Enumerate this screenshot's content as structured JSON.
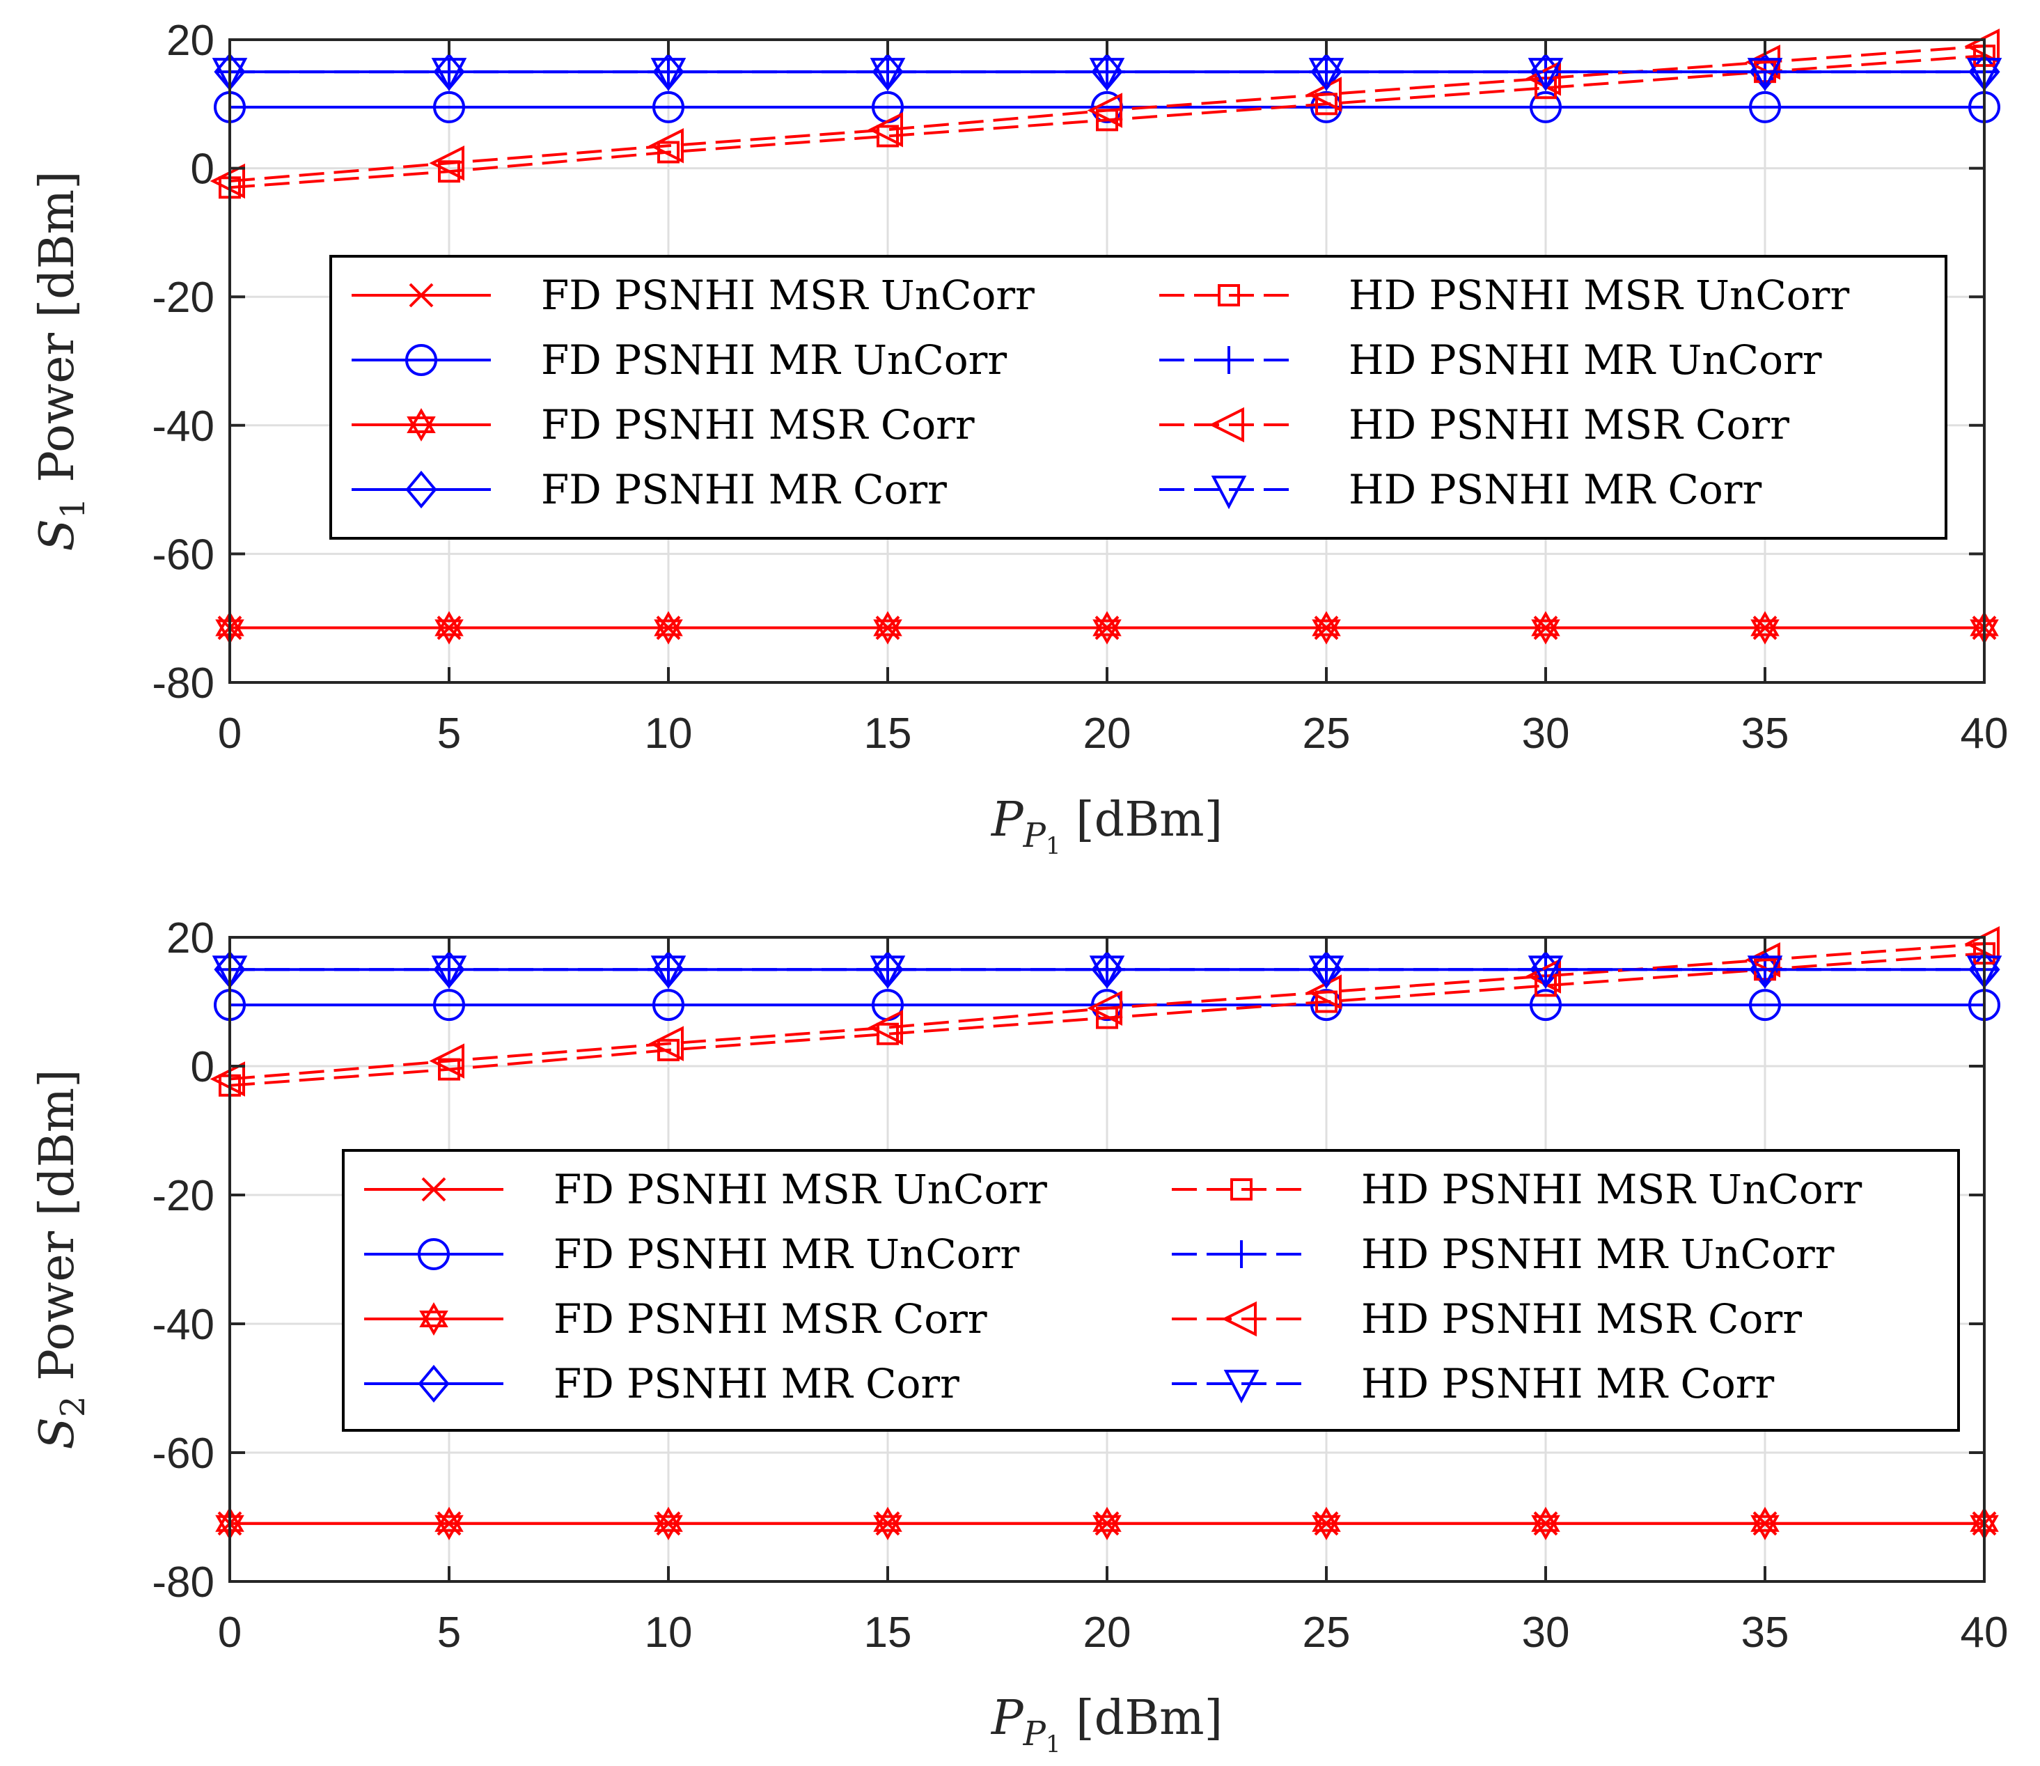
{
  "colors": {
    "red": "#ff0000",
    "blue": "#0000ff",
    "axis": "#262626",
    "grid": "#dfdfdf"
  },
  "chart_data": [
    {
      "type": "line",
      "title": "",
      "xlabel": {
        "main": "P",
        "sub": "P",
        "subsub": "1",
        "unit": "[dBm]"
      },
      "ylabel": {
        "main": "S",
        "sub": "1",
        "rest": "Power [dBm]"
      },
      "xlim": [
        0,
        40
      ],
      "ylim": [
        -80,
        20
      ],
      "xticks": [
        0,
        5,
        10,
        15,
        20,
        25,
        30,
        35,
        40
      ],
      "yticks": [
        -80,
        -60,
        -40,
        -20,
        0,
        20
      ],
      "grid": true,
      "legend_position": "center",
      "x": [
        0,
        5,
        10,
        15,
        20,
        25,
        30,
        35,
        40
      ],
      "series": [
        {
          "name": "FD PSNHI MSR UnCorr",
          "color": "#ff0000",
          "dash": "solid",
          "marker": "x",
          "values": [
            -71.5,
            -71.5,
            -71.5,
            -71.5,
            -71.5,
            -71.5,
            -71.5,
            -71.5,
            -71.5
          ]
        },
        {
          "name": "FD PSNHI MR UnCorr",
          "color": "#0000ff",
          "dash": "solid",
          "marker": "circle",
          "values": [
            9.5,
            9.5,
            9.5,
            9.5,
            9.5,
            9.5,
            9.5,
            9.5,
            9.5
          ]
        },
        {
          "name": "FD PSNHI MSR Corr",
          "color": "#ff0000",
          "dash": "solid",
          "marker": "hexagram",
          "values": [
            -71.5,
            -71.5,
            -71.5,
            -71.5,
            -71.5,
            -71.5,
            -71.5,
            -71.5,
            -71.5
          ]
        },
        {
          "name": "FD PSNHI MR Corr",
          "color": "#0000ff",
          "dash": "solid",
          "marker": "diamond",
          "values": [
            15,
            15,
            15,
            15,
            15,
            15,
            15,
            15,
            15
          ]
        },
        {
          "name": "HD PSNHI MSR UnCorr",
          "color": "#ff0000",
          "dash": "dashed",
          "marker": "square",
          "values": [
            -3,
            -0.5,
            2.5,
            5,
            7.5,
            10,
            12.5,
            15,
            17.5
          ]
        },
        {
          "name": "HD PSNHI MR UnCorr",
          "color": "#0000ff",
          "dash": "dashed",
          "marker": "plus",
          "values": [
            15,
            15,
            15,
            15,
            15,
            15,
            15,
            15,
            15
          ]
        },
        {
          "name": "HD PSNHI MSR Corr",
          "color": "#ff0000",
          "dash": "dashed",
          "marker": "triangle-left",
          "values": [
            -2,
            0.8,
            3.5,
            6,
            9,
            11.5,
            14,
            16.5,
            19
          ]
        },
        {
          "name": "HD PSNHI MR Corr",
          "color": "#0000ff",
          "dash": "dashed",
          "marker": "triangle-down",
          "values": [
            15,
            15,
            15,
            15,
            15,
            15,
            15,
            15,
            15
          ]
        }
      ]
    },
    {
      "type": "line",
      "title": "",
      "xlabel": {
        "main": "P",
        "sub": "P",
        "subsub": "1",
        "unit": "[dBm]"
      },
      "ylabel": {
        "main": "S",
        "sub": "2",
        "rest": "Power [dBm]"
      },
      "xlim": [
        0,
        40
      ],
      "ylim": [
        -80,
        20
      ],
      "xticks": [
        0,
        5,
        10,
        15,
        20,
        25,
        30,
        35,
        40
      ],
      "yticks": [
        -80,
        -60,
        -40,
        -20,
        0,
        20
      ],
      "grid": true,
      "legend_position": "center",
      "x": [
        0,
        5,
        10,
        15,
        20,
        25,
        30,
        35,
        40
      ],
      "series": [
        {
          "name": "FD PSNHI MSR UnCorr",
          "color": "#ff0000",
          "dash": "solid",
          "marker": "x",
          "values": [
            -71,
            -71,
            -71,
            -71,
            -71,
            -71,
            -71,
            -71,
            -71
          ]
        },
        {
          "name": "FD PSNHI MR UnCorr",
          "color": "#0000ff",
          "dash": "solid",
          "marker": "circle",
          "values": [
            9.5,
            9.5,
            9.5,
            9.5,
            9.5,
            9.5,
            9.5,
            9.5,
            9.5
          ]
        },
        {
          "name": "FD PSNHI MSR Corr",
          "color": "#ff0000",
          "dash": "solid",
          "marker": "hexagram",
          "values": [
            -71,
            -71,
            -71,
            -71,
            -71,
            -71,
            -71,
            -71,
            -71
          ]
        },
        {
          "name": "FD PSNHI MR Corr",
          "color": "#0000ff",
          "dash": "solid",
          "marker": "diamond",
          "values": [
            15,
            15,
            15,
            15,
            15,
            15,
            15,
            15,
            15
          ]
        },
        {
          "name": "HD PSNHI MSR UnCorr",
          "color": "#ff0000",
          "dash": "dashed",
          "marker": "square",
          "values": [
            -3,
            -0.5,
            2.5,
            5,
            7.5,
            10,
            12.5,
            15,
            17.5
          ]
        },
        {
          "name": "HD PSNHI MR UnCorr",
          "color": "#0000ff",
          "dash": "dashed",
          "marker": "plus",
          "values": [
            15,
            15,
            15,
            15,
            15,
            15,
            15,
            15,
            15
          ]
        },
        {
          "name": "HD PSNHI MSR Corr",
          "color": "#ff0000",
          "dash": "dashed",
          "marker": "triangle-left",
          "values": [
            -2,
            0.8,
            3.5,
            6,
            9,
            11.5,
            14,
            16.5,
            19
          ]
        },
        {
          "name": "HD PSNHI MR Corr",
          "color": "#0000ff",
          "dash": "dashed",
          "marker": "triangle-down",
          "values": [
            15,
            15,
            15,
            15,
            15,
            15,
            15,
            15,
            15
          ]
        }
      ]
    }
  ]
}
